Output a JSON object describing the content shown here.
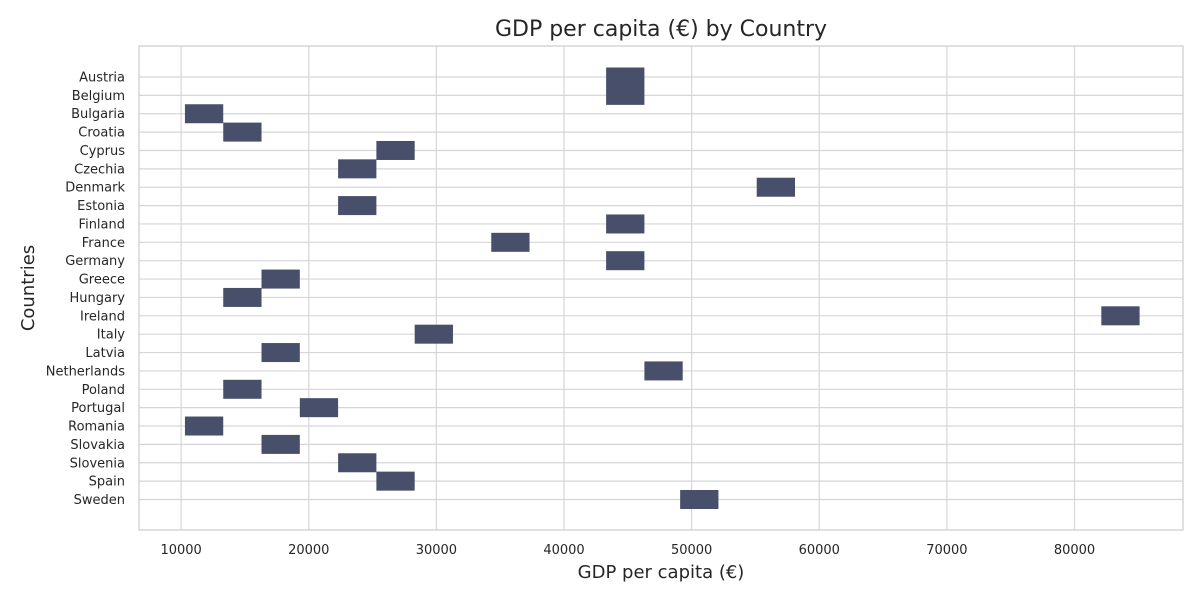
{
  "chart_data": {
    "type": "heatmap",
    "title": "GDP per capita (€) by Country",
    "xlabel": "GDP per capita (€)",
    "ylabel": "Countries",
    "grid": true,
    "xlim": [
      6700,
      88500
    ],
    "x_ticks": [
      10000,
      20000,
      30000,
      40000,
      50000,
      60000,
      70000,
      80000
    ],
    "bin_width": 3000,
    "color": "#474f6b",
    "categories": [
      "Austria",
      "Belgium",
      "Bulgaria",
      "Croatia",
      "Cyprus",
      "Czechia",
      "Denmark",
      "Estonia",
      "Finland",
      "France",
      "Germany",
      "Greece",
      "Hungary",
      "Ireland",
      "Italy",
      "Latvia",
      "Netherlands",
      "Poland",
      "Portugal",
      "Romania",
      "Slovakia",
      "Slovenia",
      "Spain",
      "Sweden"
    ],
    "bins": [
      {
        "country": "Austria",
        "x_start": 43300
      },
      {
        "country": "Belgium",
        "x_start": 43300
      },
      {
        "country": "Bulgaria",
        "x_start": 10300
      },
      {
        "country": "Croatia",
        "x_start": 13300
      },
      {
        "country": "Cyprus",
        "x_start": 25300
      },
      {
        "country": "Czechia",
        "x_start": 22300
      },
      {
        "country": "Denmark",
        "x_start": 55100
      },
      {
        "country": "Estonia",
        "x_start": 22300
      },
      {
        "country": "Finland",
        "x_start": 43300
      },
      {
        "country": "France",
        "x_start": 34300
      },
      {
        "country": "Germany",
        "x_start": 43300
      },
      {
        "country": "Greece",
        "x_start": 16300
      },
      {
        "country": "Hungary",
        "x_start": 13300
      },
      {
        "country": "Ireland",
        "x_start": 82100
      },
      {
        "country": "Italy",
        "x_start": 28300
      },
      {
        "country": "Latvia",
        "x_start": 16300
      },
      {
        "country": "Netherlands",
        "x_start": 46300
      },
      {
        "country": "Poland",
        "x_start": 13300
      },
      {
        "country": "Portugal",
        "x_start": 19300
      },
      {
        "country": "Romania",
        "x_start": 10300
      },
      {
        "country": "Slovakia",
        "x_start": 16300
      },
      {
        "country": "Slovenia",
        "x_start": 22300
      },
      {
        "country": "Spain",
        "x_start": 25300
      },
      {
        "country": "Sweden",
        "x_start": 49100
      }
    ]
  }
}
